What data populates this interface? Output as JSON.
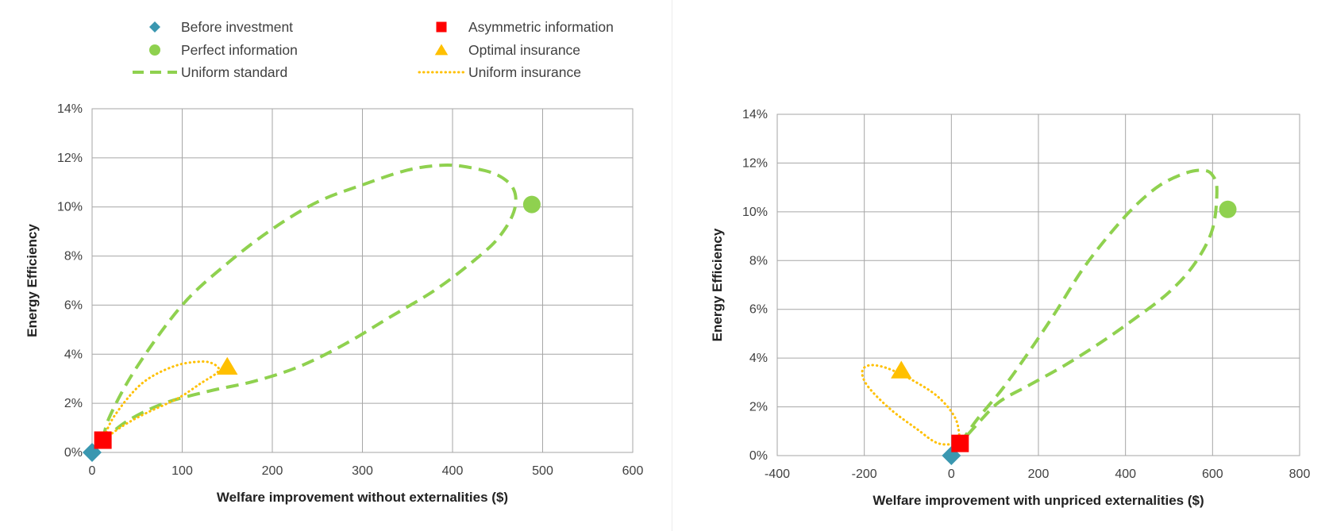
{
  "legend": [
    {
      "key": "before",
      "label": "Before investment",
      "marker": "diamond",
      "color": "#3a97b0"
    },
    {
      "key": "asym",
      "label": "Asymmetric information",
      "marker": "square",
      "color": "#ff0000"
    },
    {
      "key": "perfect",
      "label": "Perfect information",
      "marker": "circle",
      "color": "#8fd14f"
    },
    {
      "key": "optimal",
      "label": "Optimal insurance",
      "marker": "triangle",
      "color": "#ffc000"
    },
    {
      "key": "ustd",
      "label": "Uniform standard",
      "marker": "dashed-line",
      "color": "#8fd14f"
    },
    {
      "key": "uins",
      "label": "Uniform insurance",
      "marker": "dotted-line",
      "color": "#ffc000"
    }
  ],
  "chart_data": [
    {
      "type": "scatter",
      "title": "",
      "xlabel": "Welfare improvement without externalities ($)",
      "ylabel": "Energy Efficiency",
      "xlim": [
        0,
        600
      ],
      "ylim": [
        0,
        0.14
      ],
      "xticks": [
        "0",
        "100",
        "200",
        "300",
        "400",
        "500",
        "600"
      ],
      "yticks": [
        "0%",
        "2%",
        "4%",
        "6%",
        "8%",
        "10%",
        "12%",
        "14%"
      ],
      "grid": true,
      "points": [
        {
          "series": "Before investment",
          "x": 0,
          "y": 0.0
        },
        {
          "series": "Asymmetric information",
          "x": 12,
          "y": 0.005
        },
        {
          "series": "Perfect information",
          "x": 488,
          "y": 0.101
        },
        {
          "series": "Optimal insurance",
          "x": 150,
          "y": 0.035
        }
      ],
      "lines": [
        {
          "series": "Uniform standard",
          "points": [
            [
              12,
              0.005
            ],
            [
              20,
              0.015
            ],
            [
              50,
              0.035
            ],
            [
              100,
              0.06
            ],
            [
              150,
              0.077
            ],
            [
              200,
              0.091
            ],
            [
              250,
              0.102
            ],
            [
              300,
              0.109
            ],
            [
              350,
              0.115
            ],
            [
              390,
              0.117
            ],
            [
              420,
              0.116
            ],
            [
              450,
              0.113
            ],
            [
              468,
              0.107
            ],
            [
              468,
              0.098
            ],
            [
              450,
              0.087
            ],
            [
              420,
              0.077
            ],
            [
              380,
              0.066
            ],
            [
              330,
              0.055
            ],
            [
              280,
              0.044
            ],
            [
              230,
              0.035
            ],
            [
              180,
              0.029
            ],
            [
              130,
              0.025
            ],
            [
              80,
              0.02
            ],
            [
              40,
              0.013
            ],
            [
              12,
              0.005
            ]
          ]
        },
        {
          "series": "Uniform insurance",
          "points": [
            [
              12,
              0.005
            ],
            [
              25,
              0.015
            ],
            [
              55,
              0.028
            ],
            [
              90,
              0.035
            ],
            [
              120,
              0.037
            ],
            [
              135,
              0.036
            ],
            [
              140,
              0.033
            ],
            [
              120,
              0.028
            ],
            [
              95,
              0.022
            ],
            [
              60,
              0.016
            ],
            [
              35,
              0.011
            ],
            [
              12,
              0.005
            ]
          ]
        }
      ]
    },
    {
      "type": "scatter",
      "title": "",
      "xlabel": "Welfare improvement with unpriced externalities ($)",
      "ylabel": "Energy Efficiency",
      "xlim": [
        -400,
        800
      ],
      "ylim": [
        0,
        0.14
      ],
      "xticks": [
        "-400",
        "-200",
        "0",
        "200",
        "400",
        "600",
        "800"
      ],
      "yticks": [
        "0%",
        "2%",
        "4%",
        "6%",
        "8%",
        "10%",
        "12%",
        "14%"
      ],
      "grid": true,
      "points": [
        {
          "series": "Before investment",
          "x": 0,
          "y": 0.0
        },
        {
          "series": "Asymmetric information",
          "x": 20,
          "y": 0.005
        },
        {
          "series": "Perfect information",
          "x": 635,
          "y": 0.101
        },
        {
          "series": "Optimal insurance",
          "x": -115,
          "y": 0.035
        }
      ],
      "lines": [
        {
          "series": "Uniform standard",
          "points": [
            [
              20,
              0.005
            ],
            [
              60,
              0.015
            ],
            [
              120,
              0.028
            ],
            [
              180,
              0.043
            ],
            [
              240,
              0.059
            ],
            [
              300,
              0.076
            ],
            [
              360,
              0.09
            ],
            [
              420,
              0.102
            ],
            [
              480,
              0.111
            ],
            [
              540,
              0.116
            ],
            [
              580,
              0.117
            ],
            [
              600,
              0.115
            ],
            [
              610,
              0.109
            ],
            [
              600,
              0.093
            ],
            [
              560,
              0.079
            ],
            [
              500,
              0.067
            ],
            [
              420,
              0.056
            ],
            [
              340,
              0.046
            ],
            [
              260,
              0.037
            ],
            [
              180,
              0.029
            ],
            [
              110,
              0.022
            ],
            [
              60,
              0.013
            ],
            [
              20,
              0.005
            ]
          ]
        },
        {
          "series": "Uniform insurance",
          "points": [
            [
              20,
              0.005
            ],
            [
              10,
              0.015
            ],
            [
              -30,
              0.024
            ],
            [
              -90,
              0.031
            ],
            [
              -150,
              0.036
            ],
            [
              -190,
              0.037
            ],
            [
              -205,
              0.034
            ],
            [
              -190,
              0.028
            ],
            [
              -140,
              0.019
            ],
            [
              -80,
              0.011
            ],
            [
              -30,
              0.005
            ],
            [
              20,
              0.005
            ]
          ]
        }
      ]
    }
  ]
}
